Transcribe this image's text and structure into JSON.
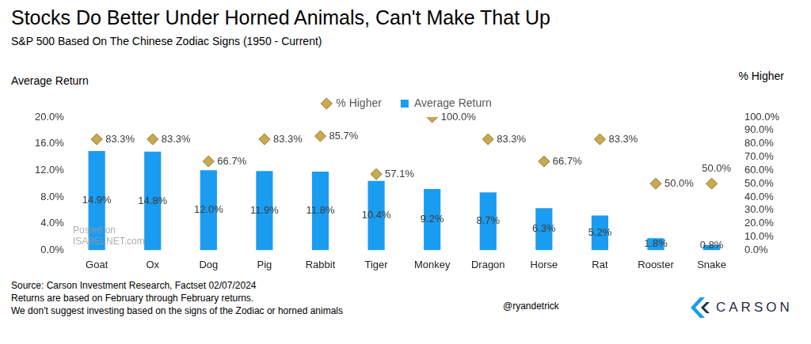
{
  "chart_data": {
    "type": "bar",
    "title": "Stocks Do Better Under Horned Animals, Can't Make That Up",
    "subtitle": "S&P 500 Based On The Chinese Zodiac Signs (1950 - Current)",
    "ylabel": "Average Return",
    "y2label": "% Higher",
    "categories": [
      "Goat",
      "Ox",
      "Dog",
      "Pig",
      "Rabbit",
      "Tiger",
      "Monkey",
      "Dragon",
      "Horse",
      "Rat",
      "Rooster",
      "Snake"
    ],
    "series": [
      {
        "name": "Average Return",
        "type": "bar",
        "color": "#1a9cf0",
        "values": [
          14.9,
          14.8,
          12.0,
          11.9,
          11.8,
          10.4,
          9.2,
          8.7,
          6.3,
          5.2,
          1.8,
          0.8
        ],
        "value_labels": [
          "14.9%",
          "14.8%",
          "12.0%",
          "11.9%",
          "11.8%",
          "10.4%",
          "9.2%",
          "8.7%",
          "6.3%",
          "5.2%",
          "1.8%",
          "0.8%"
        ]
      },
      {
        "name": "% Higher",
        "type": "scatter",
        "marker": "diamond",
        "color": "#c9a94f",
        "axis": "y2",
        "values": [
          83.3,
          83.3,
          66.7,
          83.3,
          85.7,
          57.1,
          100.0,
          83.3,
          66.7,
          83.3,
          50.0,
          50.0
        ],
        "value_labels": [
          "83.3%",
          "83.3%",
          "66.7%",
          "83.3%",
          "85.7%",
          "57.1%",
          "100.0%",
          "83.3%",
          "66.7%",
          "83.3%",
          "50.0%",
          "50.0%"
        ]
      }
    ],
    "ylim": [
      0,
      20
    ],
    "yticks": [
      {
        "value": 0,
        "label": "0.0%"
      },
      {
        "value": 4,
        "label": "4.0%"
      },
      {
        "value": 8,
        "label": "8.0%"
      },
      {
        "value": 12,
        "label": "12.0%"
      },
      {
        "value": 16,
        "label": "16.0%"
      },
      {
        "value": 20,
        "label": "20.0%"
      }
    ],
    "y2lim": [
      0,
      100
    ],
    "y2ticks": [
      {
        "value": 0,
        "label": "0.0%"
      },
      {
        "value": 10,
        "label": "10.0%"
      },
      {
        "value": 20,
        "label": "20.0%"
      },
      {
        "value": 30,
        "label": "30.0%"
      },
      {
        "value": 40,
        "label": "40.0%"
      },
      {
        "value": 50,
        "label": "50.0%"
      },
      {
        "value": 60,
        "label": "60.0%"
      },
      {
        "value": 70,
        "label": "70.0%"
      },
      {
        "value": 80,
        "label": "80.0%"
      },
      {
        "value": 90,
        "label": "90.0%"
      },
      {
        "value": 100,
        "label": "100.0%"
      }
    ],
    "grid": false,
    "legend": "top",
    "data_labels": true,
    "notes": [
      "Source: Carson Investment Research, Factset 02/07/2024",
      "Returns are based on February through February returns.",
      "We don't suggest investing based on the signs of the Zodiac or horned animals"
    ],
    "credit": "@ryandetrick",
    "logo": "CARSON",
    "watermark": [
      "Posted on",
      "ISABELNET.com"
    ]
  }
}
